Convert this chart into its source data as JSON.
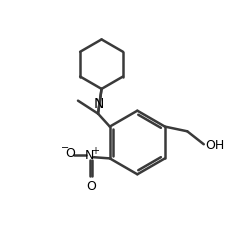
{
  "background_color": "#ffffff",
  "bond_color": "#3a3a3a",
  "text_color": "#000000",
  "line_width": 1.8,
  "figsize": [
    2.37,
    2.52
  ],
  "dpi": 100,
  "font_size": 9,
  "xlim": [
    0,
    10
  ],
  "ylim": [
    0,
    10.6
  ]
}
